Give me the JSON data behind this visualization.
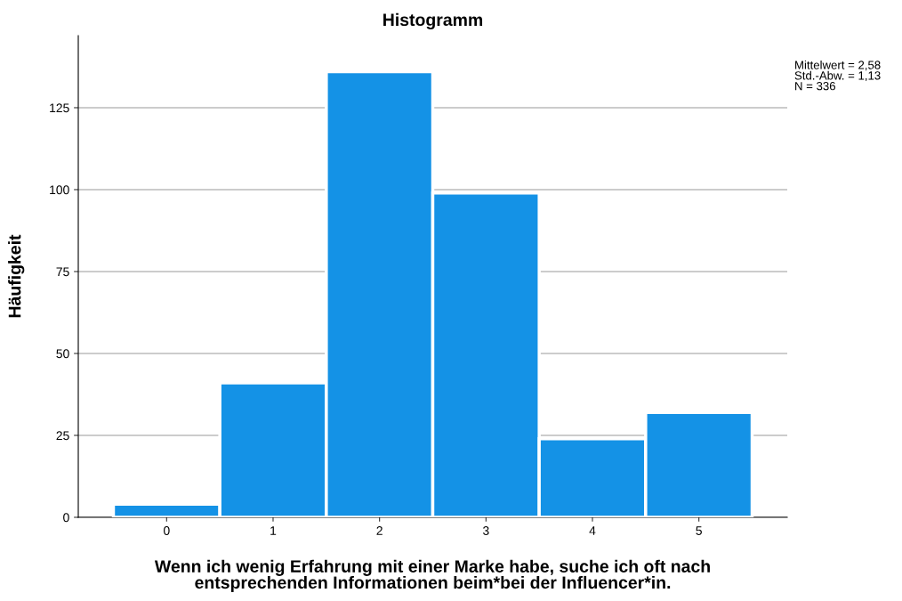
{
  "chart_data": {
    "type": "histogram",
    "title": "Histogramm",
    "xlabel": "Wenn ich wenig Erfahrung mit einer Marke habe, suche ich oft nach\nentsprechenden Informationen beim*bei der Influencer*in.",
    "ylabel": "Häufigkeit",
    "bins": [
      -0.5,
      0.5,
      1.5,
      2.5,
      3.5,
      4.5,
      5.5
    ],
    "values": [
      4,
      41,
      136,
      99,
      24,
      32
    ],
    "color": "#1492e6",
    "xlim": [
      -0.83,
      5.83
    ],
    "xticks": [
      0,
      1,
      2,
      3,
      4,
      5
    ],
    "ylim": [
      0,
      147
    ],
    "yticks": [
      0,
      25,
      50,
      75,
      100,
      125
    ],
    "grid": "y",
    "annotations": [
      "Mittelwert = 2,58\nStd.-Abw. = 1,13\nN = 336"
    ]
  }
}
